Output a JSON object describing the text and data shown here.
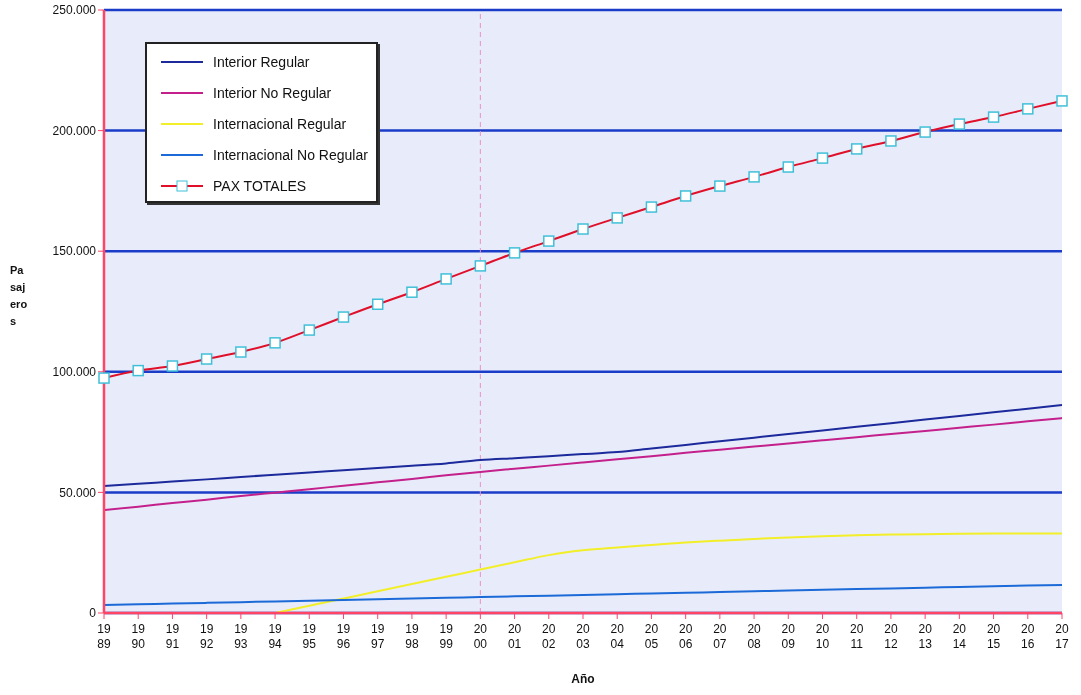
{
  "chart_data": {
    "type": "line",
    "xlabel": "Año",
    "ylabel": "Pasajeros",
    "categories": [
      "1989",
      "1990",
      "1991",
      "1992",
      "1993",
      "1994",
      "1995",
      "1996",
      "1997",
      "1998",
      "1999",
      "2000",
      "2001",
      "2002",
      "2003",
      "2004",
      "2005",
      "2006",
      "2007",
      "2008",
      "2009",
      "2010",
      "2011",
      "2012",
      "2013",
      "2014",
      "2015",
      "2016",
      "2017"
    ],
    "ylim": [
      0,
      250000
    ],
    "yticks": [
      0,
      {
        "value": 50000,
        "label": "50.000"
      },
      {
        "value": 100000,
        "label": "100.000"
      },
      {
        "value": 150000,
        "label": "150.000"
      },
      {
        "value": 200000,
        "label": "200.000"
      },
      {
        "value": 250000,
        "label": "250.000"
      }
    ],
    "grid": "y",
    "legend": "top left",
    "marker": "none",
    "line_style": "solid",
    "ref_lines": [
      {
        "axis": "x",
        "value": "2000",
        "color": "#e890c8",
        "line_style": "dashed"
      }
    ],
    "series": [
      {
        "name": "Interior Regular",
        "color": "#1c2a9c",
        "values": [
          52700,
          53600,
          54500,
          55400,
          56400,
          57300,
          58200,
          59200,
          60100,
          61000,
          62000,
          63400,
          64200,
          65000,
          65900,
          66700,
          68200,
          69700,
          71200,
          72700,
          74200,
          75700,
          77200,
          78700,
          80200,
          81700,
          83200,
          84700,
          86200
        ]
      },
      {
        "name": "Interior No Regular",
        "color": "#c4208c",
        "values": [
          42700,
          44100,
          45600,
          47000,
          48500,
          49900,
          51300,
          52800,
          54200,
          55600,
          57100,
          58500,
          59800,
          61100,
          62400,
          63700,
          65000,
          66400,
          67700,
          69000,
          70300,
          71600,
          72900,
          74200,
          75500,
          76800,
          78100,
          79500,
          80800
        ]
      },
      {
        "name": "Internacional Regular",
        "color": "#f2ee28",
        "values": [
          null,
          null,
          null,
          null,
          null,
          0,
          3000,
          6000,
          9000,
          12000,
          15000,
          18000,
          21000,
          24000,
          26000,
          27200,
          28200,
          29200,
          30000,
          30700,
          31300,
          31800,
          32200,
          32500,
          32700,
          32900,
          33000,
          33000,
          33000
        ]
      },
      {
        "name": "Internacional No Regular",
        "color": "#1c6ad8",
        "values": [
          3300,
          3600,
          3900,
          4200,
          4500,
          4800,
          5100,
          5400,
          5700,
          6000,
          6300,
          6600,
          6900,
          7200,
          7500,
          7800,
          8100,
          8400,
          8700,
          9000,
          9300,
          9600,
          9900,
          10200,
          10500,
          10800,
          11100,
          11400,
          11600
        ]
      },
      {
        "name": "PAX TOTALES",
        "color": "#e0102a",
        "marker": "square",
        "values": [
          97400,
          100500,
          102400,
          105300,
          108200,
          112000,
          117300,
          122700,
          128000,
          133000,
          138500,
          143900,
          149300,
          154200,
          159200,
          163800,
          168300,
          172900,
          177000,
          180800,
          184900,
          188600,
          192400,
          195700,
          199400,
          202700,
          205600,
          209000,
          212300
        ]
      }
    ]
  }
}
